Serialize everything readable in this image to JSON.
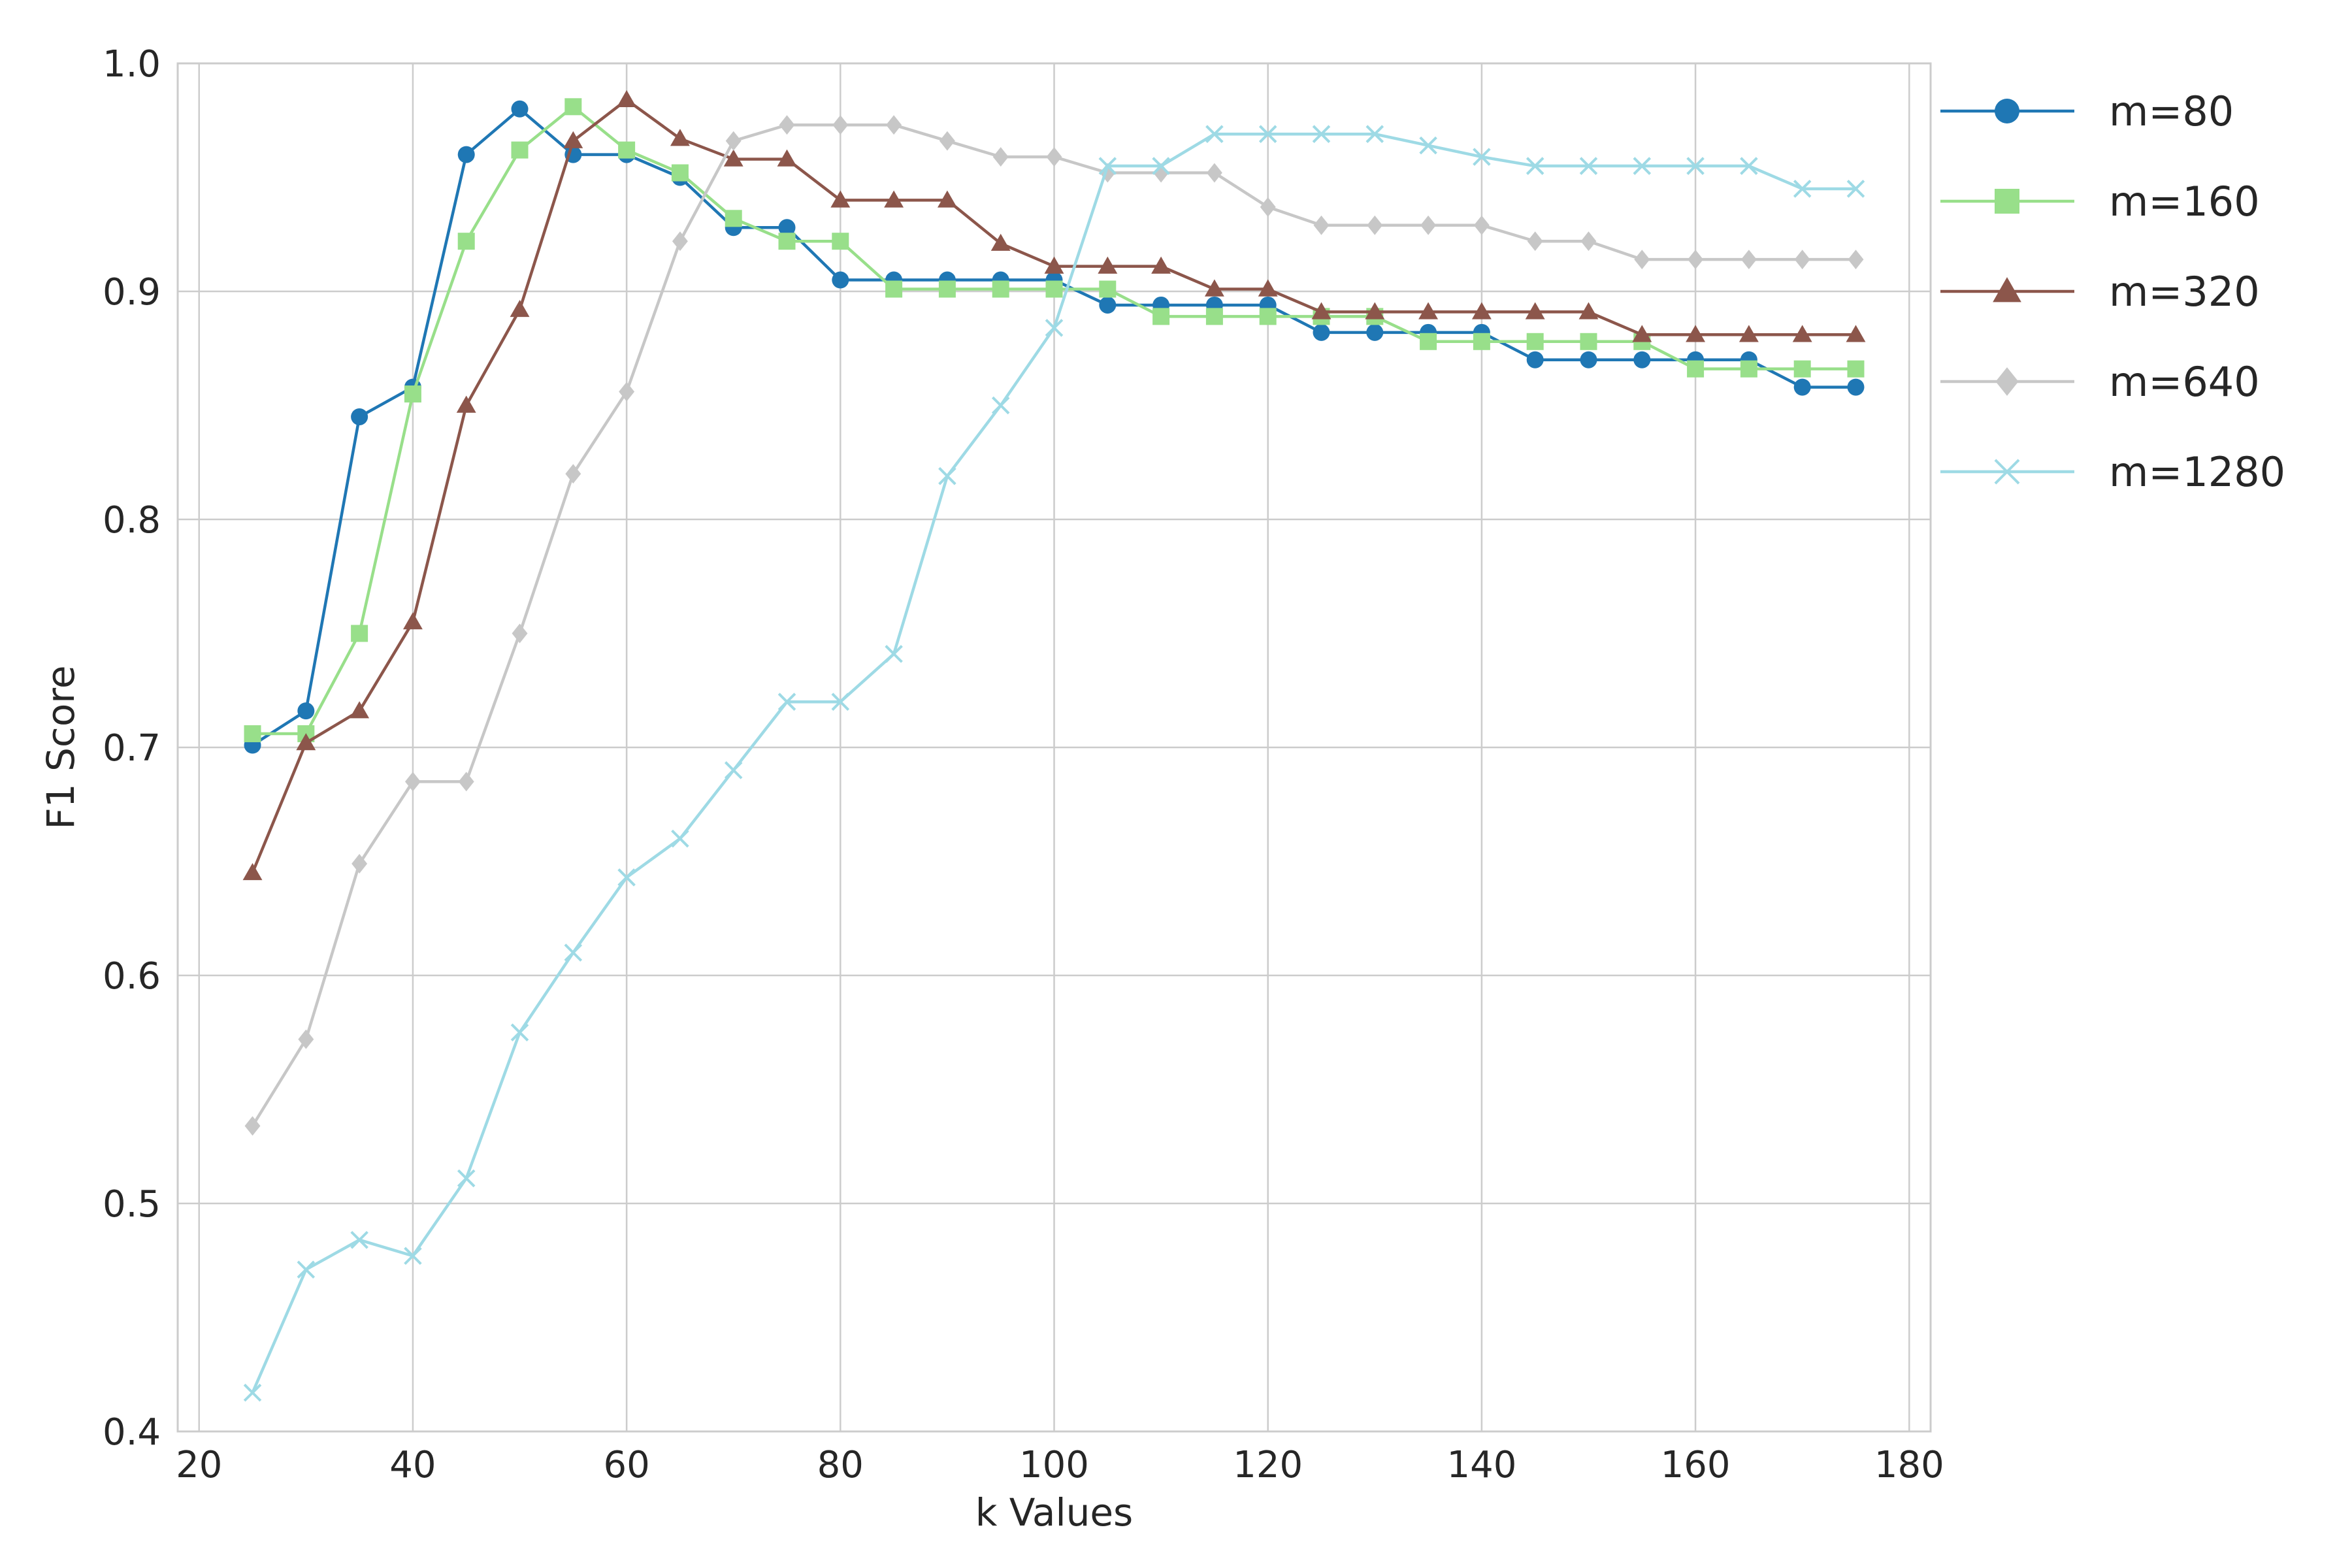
{
  "chart_data": {
    "type": "line",
    "title": "",
    "xlabel": "k Values",
    "ylabel": "F1 Score",
    "xlim": [
      18,
      182
    ],
    "ylim": [
      0.4,
      1.0
    ],
    "xticks": [
      20,
      40,
      60,
      80,
      100,
      120,
      140,
      160,
      180
    ],
    "yticks": [
      0.4,
      0.5,
      0.6,
      0.7,
      0.8,
      0.9,
      1.0
    ],
    "xtick_labels": [
      "20",
      "40",
      "60",
      "80",
      "100",
      "120",
      "140",
      "160",
      "180"
    ],
    "ytick_labels": [
      "0.4",
      "0.5",
      "0.6",
      "0.7",
      "0.8",
      "0.9",
      "1.0"
    ],
    "grid": true,
    "legend_position": "outside-right-top",
    "x": [
      25,
      30,
      35,
      40,
      45,
      50,
      55,
      60,
      65,
      70,
      75,
      80,
      85,
      90,
      95,
      100,
      105,
      110,
      115,
      120,
      125,
      130,
      135,
      140,
      145,
      150,
      155,
      160,
      165,
      170,
      175
    ],
    "series": [
      {
        "name": "m=80",
        "color": "#1f77b4",
        "marker": "circle",
        "values": [
          0.701,
          0.716,
          0.845,
          0.858,
          0.96,
          0.98,
          0.96,
          0.96,
          0.95,
          0.928,
          0.928,
          0.905,
          0.905,
          0.905,
          0.905,
          0.905,
          0.894,
          0.894,
          0.894,
          0.894,
          0.882,
          0.882,
          0.882,
          0.882,
          0.87,
          0.87,
          0.87,
          0.87,
          0.87,
          0.858,
          0.858
        ]
      },
      {
        "name": "m=160",
        "color": "#98df8a",
        "marker": "square",
        "values": [
          0.706,
          0.706,
          0.75,
          0.855,
          0.922,
          0.962,
          0.981,
          0.962,
          0.952,
          0.932,
          0.922,
          0.922,
          0.901,
          0.901,
          0.901,
          0.901,
          0.901,
          0.889,
          0.889,
          0.889,
          0.889,
          0.889,
          0.878,
          0.878,
          0.878,
          0.878,
          0.878,
          0.866,
          0.866,
          0.866,
          0.866
        ]
      },
      {
        "name": "m=320",
        "color": "#8c564b",
        "marker": "triangle",
        "values": [
          0.645,
          0.702,
          0.716,
          0.755,
          0.85,
          0.892,
          0.966,
          0.984,
          0.967,
          0.958,
          0.958,
          0.94,
          0.94,
          0.94,
          0.921,
          0.911,
          0.911,
          0.911,
          0.901,
          0.901,
          0.891,
          0.891,
          0.891,
          0.891,
          0.891,
          0.891,
          0.881,
          0.881,
          0.881,
          0.881,
          0.881
        ]
      },
      {
        "name": "m=640",
        "color": "#c7c7c7",
        "marker": "diamond",
        "values": [
          0.534,
          0.572,
          0.649,
          0.685,
          0.685,
          0.75,
          0.82,
          0.856,
          0.922,
          0.966,
          0.973,
          0.973,
          0.973,
          0.966,
          0.959,
          0.959,
          0.952,
          0.952,
          0.952,
          0.937,
          0.929,
          0.929,
          0.929,
          0.929,
          0.922,
          0.922,
          0.914,
          0.914,
          0.914,
          0.914,
          0.914
        ]
      },
      {
        "name": "m=1280",
        "color": "#9edae5",
        "marker": "x",
        "values": [
          0.417,
          0.471,
          0.484,
          0.477,
          0.511,
          0.575,
          0.61,
          0.643,
          0.66,
          0.69,
          0.72,
          0.72,
          0.741,
          0.819,
          0.85,
          0.884,
          0.955,
          0.955,
          0.969,
          0.969,
          0.969,
          0.969,
          0.964,
          0.959,
          0.955,
          0.955,
          0.955,
          0.955,
          0.955,
          0.945,
          0.945
        ]
      }
    ]
  }
}
